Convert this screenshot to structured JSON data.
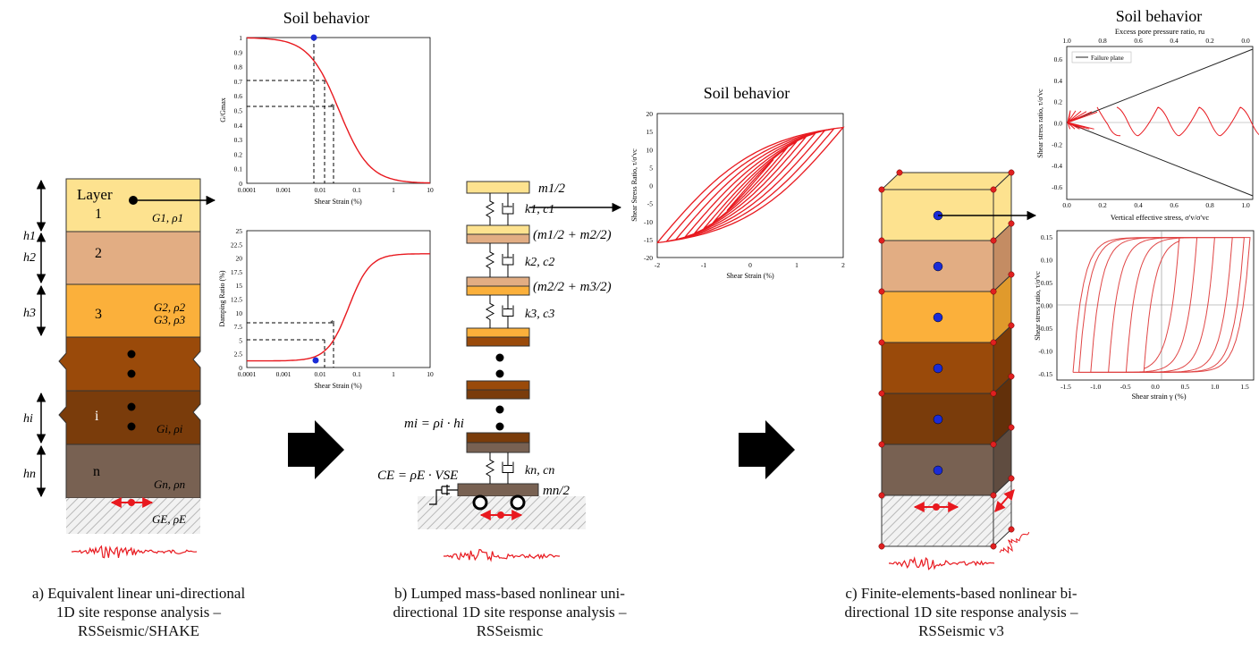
{
  "colors": {
    "layer1": "#fde28f",
    "layer2": "#e2ad83",
    "layer3": "#fbb03b",
    "layer4": "#9a4a0a",
    "layer5": "#7a3c0b",
    "layer6": "#786152",
    "bedrock_hatch": "#b8b8b8",
    "curve_red": "#e8191f",
    "marker_blue": "#1a2bd6",
    "node_red": "#e02020"
  },
  "panel_a": {
    "caption": [
      "a) Equivalent linear uni-directional",
      "1D site response analysis –",
      "RSSeismic/SHAKE"
    ],
    "layer_labels": [
      "Layer",
      "1",
      "2",
      "3",
      "i",
      "n"
    ],
    "thickness_labels": [
      "h1",
      "h2",
      "h3",
      "hi",
      "hn"
    ],
    "props_labels": [
      "G1, ρ1",
      "G2, ρ2",
      "G3, ρ3",
      "Gi, ρi",
      "Gn, ρn",
      "GE, ρE"
    ]
  },
  "panel_a_charts": {
    "title": "Soil behavior",
    "top": {
      "ylabel": "G/Gmax",
      "xlabel": "Shear Strain (%)",
      "yticks": [
        "1",
        "0.9",
        "0.8",
        "0.7",
        "0.6",
        "0.5",
        "0.4",
        "0.3",
        "0.2",
        "0.1",
        "0"
      ],
      "xticks": [
        "0.0001",
        "0.001",
        "0.01",
        "0.1",
        "1",
        "10"
      ]
    },
    "bottom": {
      "ylabel": "Damping Ratio (%)",
      "xlabel": "Shear Strain (%)",
      "yticks": [
        "25",
        "22.5",
        "20",
        "17.5",
        "15",
        "12.5",
        "10",
        "7.5",
        "5",
        "2.5",
        "0"
      ],
      "xticks": [
        "0.0001",
        "0.001",
        "0.01",
        "0.1",
        "1",
        "10"
      ]
    }
  },
  "panel_b": {
    "caption": [
      "b) Lumped mass-based nonlinear uni-",
      "directional 1D site response analysis –",
      "RSSeismic"
    ],
    "mass_labels": [
      "m1/2",
      "(m1/2 + m2/2)",
      "(m2/2 + m3/2)",
      "mn/2"
    ],
    "spring_labels": [
      "k1, c1",
      "k2, c2",
      "k3, c3",
      "kn, cn"
    ],
    "eq_mass": "mi = ρi · hi",
    "eq_dashpot": "CE = ρE · VSE"
  },
  "panel_b_chart": {
    "title": "Soil behavior",
    "ylabel": "Shear Stress Ratio, τ/σ'vc",
    "xlabel": "Shear Strain (%)",
    "yticks": [
      "20",
      "15",
      "10",
      "5",
      "0",
      "-5",
      "-10",
      "-15",
      "-20"
    ],
    "xticks": [
      "-2",
      "-1",
      "0",
      "1",
      "2"
    ]
  },
  "panel_c": {
    "caption": [
      "c) Finite-elements-based nonlinear bi-",
      "directional 1D site response analysis –",
      "RSSeismic v3"
    ]
  },
  "panel_c_charts": {
    "title": "Soil behavior",
    "top": {
      "top_axis_label": "Excess pore pressure ratio, ru",
      "top_ticks": [
        "1.0",
        "0.8",
        "0.6",
        "0.4",
        "0.2",
        "0.0"
      ],
      "ylabel": "Shear stress ratio, τ/σ'vc",
      "xlabel": "Vertical effective stress, σ'v/σ'vc",
      "yticks": [
        "0.6",
        "0.4",
        "0.2",
        "0.0",
        "-0.2",
        "-0.4",
        "-0.6"
      ],
      "xticks": [
        "0.0",
        "0.2",
        "0.4",
        "0.6",
        "0.8",
        "1.0"
      ],
      "legend": "Failure plane"
    },
    "bottom": {
      "ylabel": "Shear stress ratio, τ/σ'vc",
      "xlabel": "Shear strain γ (%)",
      "yticks": [
        "0.15",
        "0.10",
        "0.05",
        "0.00",
        "-0.05",
        "-0.10",
        "-0.15"
      ],
      "xticks": [
        "-1.5",
        "-1.0",
        "-0.5",
        "0.0",
        "0.5",
        "1.0",
        "1.5"
      ]
    }
  }
}
